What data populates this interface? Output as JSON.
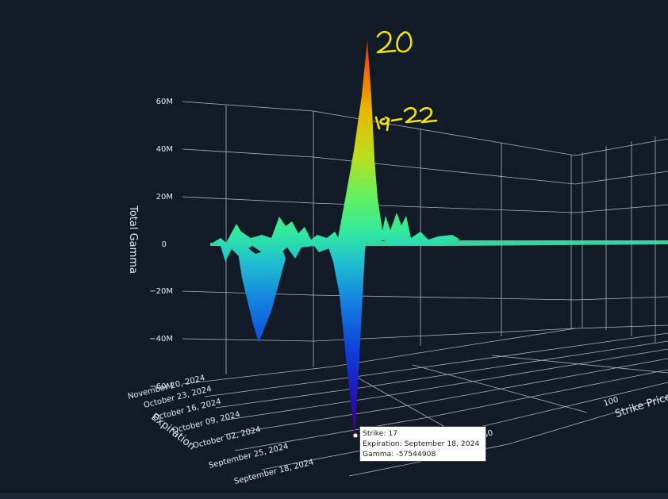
{
  "chart_data": {
    "type": "surface",
    "z_title": "Total Gamma",
    "x_title": "Strike Price",
    "y_title": "Expiration",
    "z_ticks": [
      "60M",
      "40M",
      "20M",
      "0",
      "−20M",
      "−40M",
      "−60M"
    ],
    "x_ticks": [
      "50",
      "100"
    ],
    "y_ticks": [
      "September 18, 2024",
      "September 25, 2024",
      "October 02, 2024",
      "October 09, 2024",
      "October 16, 2024",
      "October 23, 2024",
      "November 20, 2024"
    ],
    "zlim": [
      -60000000,
      60000000
    ],
    "peaks": [
      {
        "strike": 20,
        "gamma": 63000000
      },
      {
        "strike": 17,
        "gamma": -57544908
      },
      {
        "strike": 14,
        "gamma": -41000000
      }
    ],
    "colorscale": [
      "#3a0070",
      "#1030d0",
      "#1080e0",
      "#20d0b0",
      "#60f060",
      "#c0e020",
      "#f09000",
      "#e02010"
    ]
  },
  "annotations": {
    "top": "20",
    "secondary": "19-22"
  },
  "tooltip": {
    "strike": "Strike: 17",
    "expiration": "Expiration: September 18, 2024",
    "gamma": "Gamma: -57544908"
  }
}
